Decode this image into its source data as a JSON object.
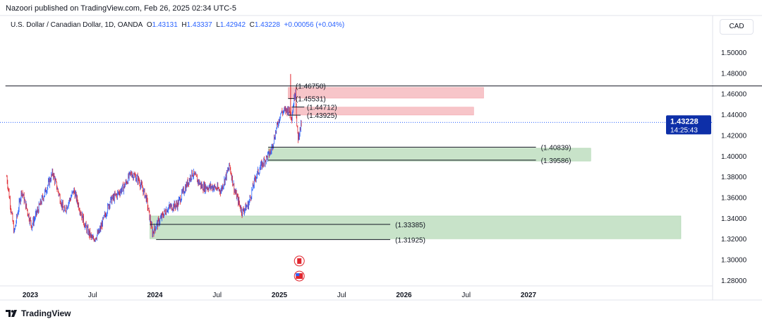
{
  "header": {
    "published": "Nazoori published on TradingView.com, Feb 26, 2025 02:34 UTC-5",
    "symbol": "U.S. Dollar / Canadian Dollar, 1D, OANDA",
    "o_label": "O",
    "o": "1.43131",
    "h_label": "H",
    "h": "1.43337",
    "l_label": "L",
    "l": "1.42942",
    "c_label": "C",
    "c": "1.43228",
    "change": "+0.00056 (+0.04%)",
    "currency": "CAD"
  },
  "footer": {
    "brand": "TradingView"
  },
  "chart_data": {
    "type": "candlestick",
    "title": "U.S. Dollar / Canadian Dollar, 1D, OANDA",
    "ylim": [
      1.27,
      1.51
    ],
    "y_ticks": [
      "1.50000",
      "1.48000",
      "1.46000",
      "1.44000",
      "1.42000",
      "1.40000",
      "1.38000",
      "1.36000",
      "1.34000",
      "1.32000",
      "1.30000",
      "1.28000"
    ],
    "x_ticks": [
      {
        "label": "2023",
        "t": 2023.0
      },
      {
        "label": "Jul",
        "t": 2023.5
      },
      {
        "label": "2024",
        "t": 2024.0
      },
      {
        "label": "Jul",
        "t": 2024.5
      },
      {
        "label": "2025",
        "t": 2025.0
      },
      {
        "label": "Jul",
        "t": 2025.5
      },
      {
        "label": "2026",
        "t": 2026.0
      },
      {
        "label": "Jul",
        "t": 2026.5
      },
      {
        "label": "2027",
        "t": 2027.0
      }
    ],
    "last_price": {
      "value": "1.43228",
      "countdown": "14:25:43",
      "color": "#0d2fa8"
    },
    "path": [
      [
        2022.81,
        1.38
      ],
      [
        2022.87,
        1.3257
      ],
      [
        2022.93,
        1.3665
      ],
      [
        2023.01,
        1.3325
      ],
      [
        2023.1,
        1.3597
      ],
      [
        2023.18,
        1.3835
      ],
      [
        2023.27,
        1.346
      ],
      [
        2023.35,
        1.3665
      ],
      [
        2023.44,
        1.3325
      ],
      [
        2023.5,
        1.3189
      ],
      [
        2023.55,
        1.3257
      ],
      [
        2023.64,
        1.3563
      ],
      [
        2023.7,
        1.3631
      ],
      [
        2023.75,
        1.37
      ],
      [
        2023.81,
        1.3835
      ],
      [
        2023.87,
        1.3767
      ],
      [
        2023.93,
        1.3597
      ],
      [
        2023.98,
        1.3257
      ],
      [
        2024.01,
        1.3325
      ],
      [
        2024.1,
        1.3495
      ],
      [
        2024.18,
        1.3529
      ],
      [
        2024.3,
        1.3835
      ],
      [
        2024.38,
        1.37
      ],
      [
        2024.47,
        1.37
      ],
      [
        2024.53,
        1.3665
      ],
      [
        2024.6,
        1.3904
      ],
      [
        2024.64,
        1.3665
      ],
      [
        2024.7,
        1.346
      ],
      [
        2024.75,
        1.3529
      ],
      [
        2024.81,
        1.38
      ],
      [
        2024.87,
        1.3938
      ],
      [
        2024.93,
        1.404
      ],
      [
        2024.98,
        1.4278
      ],
      [
        2025.01,
        1.4414
      ],
      [
        2025.07,
        1.4448
      ],
      [
        2025.1,
        1.438
      ],
      [
        2025.11,
        1.4482
      ],
      [
        2025.13,
        1.4653
      ],
      [
        2025.14,
        1.4278
      ],
      [
        2025.15,
        1.4176
      ],
      [
        2025.18,
        1.4323
      ]
    ],
    "zones": [
      {
        "kind": "supply",
        "t0": 2025.07,
        "t1": 2026.64,
        "top": 1.466,
        "bottom": 1.4557,
        "color": "#f7c5c9"
      },
      {
        "kind": "supply",
        "t0": 2025.07,
        "t1": 2026.56,
        "top": 1.447,
        "bottom": 1.4394,
        "color": "#f7c5c9"
      },
      {
        "kind": "demand",
        "t0": 2024.91,
        "t1": 2027.5,
        "top": 1.4074,
        "bottom": 1.395,
        "color": "#c8e3c9"
      },
      {
        "kind": "demand",
        "t0": 2023.96,
        "t1": 2030.0,
        "top": 1.342,
        "bottom": 1.32,
        "color": "#c8e3c9"
      }
    ],
    "levels": [
      {
        "value": 1.4675,
        "label": "(1.46750)",
        "t0": 2022.8,
        "t1": 2030.2,
        "lt": 2025.13
      },
      {
        "value": 1.45531,
        "label": "(1.45531)",
        "t0": 2025.07,
        "t1": 2025.12,
        "lt": 2025.13
      },
      {
        "value": 1.44712,
        "label": "(1.44712)",
        "t0": 2025.1,
        "t1": 2025.2,
        "lt": 2025.22
      },
      {
        "value": 1.43925,
        "label": "(1.43925)",
        "t0": 2025.07,
        "t1": 2025.17,
        "lt": 2025.22
      },
      {
        "value": 1.40839,
        "label": "(1.40839)",
        "t0": 2024.91,
        "t1": 2027.06,
        "lt": 2027.1
      },
      {
        "value": 1.39586,
        "label": "(1.39586)",
        "t0": 2024.91,
        "t1": 2027.06,
        "lt": 2027.1
      },
      {
        "value": 1.33385,
        "label": "(1.33385)",
        "t0": 2023.96,
        "t1": 2025.89,
        "lt": 2025.93
      },
      {
        "value": 1.31925,
        "label": "(1.31925)",
        "t0": 2024.01,
        "t1": 2025.89,
        "lt": 2025.93
      }
    ],
    "events": [
      {
        "name": "canada-flag-icon",
        "t": 2025.16,
        "price": 1.2985
      },
      {
        "name": "us-flag-icon",
        "t": 2025.16,
        "price": 1.284
      }
    ]
  }
}
